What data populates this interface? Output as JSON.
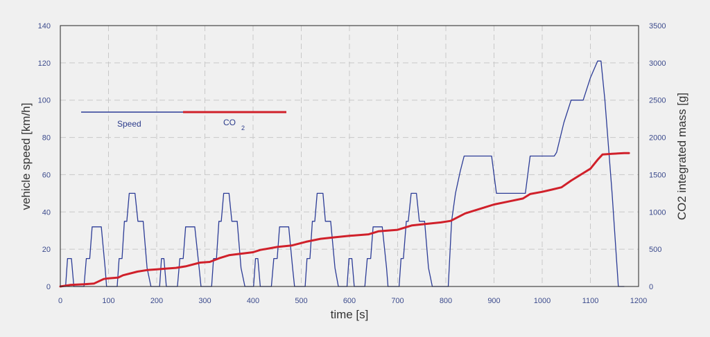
{
  "chart_data": {
    "type": "line",
    "xlabel": "time [s]",
    "ylabel_left": "vehicle speed [km/h]",
    "ylabel_right": "CO2 integrated mass [g]",
    "xlim": [
      0,
      1200
    ],
    "ylim_left": [
      0,
      140
    ],
    "ylim_right": [
      0,
      3500
    ],
    "x_ticks": [
      0,
      100,
      200,
      300,
      400,
      500,
      600,
      700,
      800,
      900,
      1000,
      1100,
      1200
    ],
    "y_ticks_left": [
      0,
      20,
      40,
      60,
      80,
      100,
      120,
      140
    ],
    "y_ticks_right": [
      0,
      500,
      1000,
      1500,
      2000,
      2500,
      3000,
      3500
    ],
    "grid": true,
    "legend": {
      "placement": "upper-left",
      "items": [
        {
          "label": "Speed",
          "color": "#2b3b96"
        },
        {
          "label": "CO",
          "subscript": "2",
          "color": "#d0202a"
        }
      ]
    },
    "series": [
      {
        "name": "Speed",
        "axis": "left",
        "color": "#2b3b96",
        "points": [
          [
            0,
            0
          ],
          [
            11,
            0
          ],
          [
            15,
            15
          ],
          [
            23,
            15
          ],
          [
            28,
            0
          ],
          [
            49,
            0
          ],
          [
            54,
            15
          ],
          [
            61,
            15
          ],
          [
            66,
            32
          ],
          [
            85,
            32
          ],
          [
            93,
            10
          ],
          [
            96,
            0
          ],
          [
            107,
            0
          ],
          [
            118,
            0
          ],
          [
            122,
            15
          ],
          [
            128,
            15
          ],
          [
            133,
            35
          ],
          [
            138,
            35
          ],
          [
            143,
            50
          ],
          [
            155,
            50
          ],
          [
            161,
            35
          ],
          [
            172,
            35
          ],
          [
            180,
            10
          ],
          [
            188,
            0
          ],
          [
            195,
            0
          ],
          [
            206,
            0
          ],
          [
            210,
            15
          ],
          [
            215,
            15
          ],
          [
            220,
            0
          ],
          [
            243,
            0
          ],
          [
            248,
            15
          ],
          [
            255,
            15
          ],
          [
            260,
            32
          ],
          [
            279,
            32
          ],
          [
            288,
            10
          ],
          [
            292,
            0
          ],
          [
            303,
            0
          ],
          [
            314,
            0
          ],
          [
            318,
            15
          ],
          [
            324,
            15
          ],
          [
            329,
            35
          ],
          [
            334,
            35
          ],
          [
            339,
            50
          ],
          [
            350,
            50
          ],
          [
            356,
            35
          ],
          [
            367,
            35
          ],
          [
            375,
            10
          ],
          [
            383,
            0
          ],
          [
            390,
            0
          ],
          [
            401,
            0
          ],
          [
            405,
            15
          ],
          [
            410,
            15
          ],
          [
            415,
            0
          ],
          [
            438,
            0
          ],
          [
            443,
            15
          ],
          [
            450,
            15
          ],
          [
            455,
            32
          ],
          [
            474,
            32
          ],
          [
            482,
            10
          ],
          [
            486,
            0
          ],
          [
            497,
            0
          ],
          [
            508,
            0
          ],
          [
            512,
            15
          ],
          [
            518,
            15
          ],
          [
            523,
            35
          ],
          [
            528,
            35
          ],
          [
            533,
            50
          ],
          [
            545,
            50
          ],
          [
            550,
            35
          ],
          [
            561,
            35
          ],
          [
            570,
            10
          ],
          [
            577,
            0
          ],
          [
            585,
            0
          ],
          [
            595,
            0
          ],
          [
            599,
            15
          ],
          [
            605,
            15
          ],
          [
            610,
            0
          ],
          [
            632,
            0
          ],
          [
            637,
            15
          ],
          [
            644,
            15
          ],
          [
            649,
            32
          ],
          [
            668,
            32
          ],
          [
            677,
            10
          ],
          [
            680,
            0
          ],
          [
            692,
            0
          ],
          [
            703,
            0
          ],
          [
            707,
            15
          ],
          [
            712,
            15
          ],
          [
            718,
            35
          ],
          [
            722,
            35
          ],
          [
            728,
            50
          ],
          [
            739,
            50
          ],
          [
            745,
            35
          ],
          [
            756,
            35
          ],
          [
            764,
            10
          ],
          [
            772,
            0
          ],
          [
            780,
            0
          ],
          [
            805,
            0
          ],
          [
            812,
            35
          ],
          [
            820,
            50
          ],
          [
            830,
            62
          ],
          [
            838,
            70
          ],
          [
            895,
            70
          ],
          [
            905,
            50
          ],
          [
            965,
            50
          ],
          [
            975,
            70
          ],
          [
            1025,
            70
          ],
          [
            1030,
            72
          ],
          [
            1045,
            88
          ],
          [
            1060,
            100
          ],
          [
            1085,
            100
          ],
          [
            1100,
            112
          ],
          [
            1115,
            121
          ],
          [
            1122,
            121
          ],
          [
            1130,
            100
          ],
          [
            1145,
            50
          ],
          [
            1158,
            0
          ],
          [
            1170,
            0
          ]
        ]
      },
      {
        "name": "CO2",
        "axis": "right",
        "color": "#d0202a",
        "points": [
          [
            0,
            0
          ],
          [
            20,
            20
          ],
          [
            50,
            30
          ],
          [
            70,
            40
          ],
          [
            90,
            100
          ],
          [
            100,
            110
          ],
          [
            120,
            120
          ],
          [
            130,
            150
          ],
          [
            160,
            200
          ],
          [
            180,
            220
          ],
          [
            200,
            230
          ],
          [
            220,
            240
          ],
          [
            240,
            250
          ],
          [
            260,
            270
          ],
          [
            290,
            320
          ],
          [
            310,
            330
          ],
          [
            330,
            380
          ],
          [
            350,
            420
          ],
          [
            375,
            440
          ],
          [
            400,
            460
          ],
          [
            415,
            490
          ],
          [
            450,
            530
          ],
          [
            480,
            550
          ],
          [
            510,
            600
          ],
          [
            540,
            640
          ],
          [
            570,
            660
          ],
          [
            600,
            680
          ],
          [
            640,
            700
          ],
          [
            660,
            740
          ],
          [
            700,
            760
          ],
          [
            730,
            820
          ],
          [
            760,
            840
          ],
          [
            790,
            860
          ],
          [
            810,
            880
          ],
          [
            840,
            980
          ],
          [
            880,
            1060
          ],
          [
            900,
            1100
          ],
          [
            930,
            1140
          ],
          [
            960,
            1180
          ],
          [
            975,
            1240
          ],
          [
            1000,
            1270
          ],
          [
            1020,
            1300
          ],
          [
            1040,
            1330
          ],
          [
            1060,
            1420
          ],
          [
            1080,
            1500
          ],
          [
            1100,
            1580
          ],
          [
            1115,
            1700
          ],
          [
            1125,
            1770
          ],
          [
            1145,
            1780
          ],
          [
            1170,
            1790
          ],
          [
            1180,
            1790
          ]
        ]
      }
    ]
  }
}
